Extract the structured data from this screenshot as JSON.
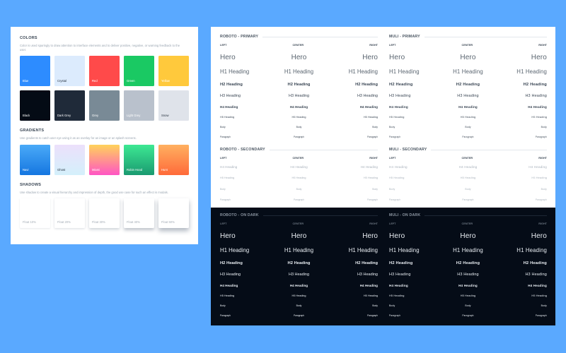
{
  "colors_section": {
    "title": "COLORS",
    "description": "Color is used sparingly to draw attention to interface elements and to deliver positive, negative, or warning feedback to the user.",
    "swatches_row1": [
      {
        "name": "Blue",
        "color": "#2d8cff",
        "text_color": "#ffffff"
      },
      {
        "name": "Crystal",
        "color": "#dcebfd",
        "text_color": "#1f2b38"
      },
      {
        "name": "Red",
        "color": "#ff4a4a",
        "text_color": "#ffffff"
      },
      {
        "name": "Green",
        "color": "#1ac963",
        "text_color": "#ffffff"
      },
      {
        "name": "Yellow",
        "color": "#ffc93c",
        "text_color": "#ffffff"
      }
    ],
    "swatches_row2": [
      {
        "name": "Black",
        "color": "#040b15",
        "text_color": "#ffffff"
      },
      {
        "name": "Dark Grey",
        "color": "#1f2a39",
        "text_color": "#ffffff"
      },
      {
        "name": "Grey",
        "color": "#798a96",
        "text_color": "#ffffff"
      },
      {
        "name": "Light Grey",
        "color": "#b9c1cc",
        "text_color": "#ffffff"
      },
      {
        "name": "Snow",
        "color": "#dfe3ea",
        "text_color": "#1f2b38"
      }
    ]
  },
  "gradients_section": {
    "title": "GRADIENTS",
    "description": "Use gradients to catch user eye using it as an overlay for an image or an splash screens.",
    "swatches": [
      {
        "name": "Navi",
        "from": "#4aaaf8",
        "to": "#1576e0",
        "text_color": "#ffffff"
      },
      {
        "name": "Ghost",
        "from": "#ece0fb",
        "to": "#d4f0fb",
        "text_color": "#1f2b38"
      },
      {
        "name": "Miami",
        "from": "#ffd25a",
        "to": "#ff55c4",
        "text_color": "#ffffff"
      },
      {
        "name": "Robin Hood",
        "from": "#3de893",
        "to": "#1a9a70",
        "text_color": "#ffffff"
      },
      {
        "name": "Hunt",
        "from": "#ffb060",
        "to": "#ff6a3a",
        "text_color": "#ffffff"
      }
    ]
  },
  "shadows_section": {
    "title": "SHADOWS",
    "description": "Use shadow to create a visual hierarchy and impression of depth, the good use case for such an effect is modals.",
    "cards": [
      {
        "name": "Float 10%",
        "shadow": "0 1px 2px rgba(20,40,70,0.10)"
      },
      {
        "name": "Float 20%",
        "shadow": "0 1px 3px rgba(20,40,70,0.16)"
      },
      {
        "name": "Float 30%",
        "shadow": "0 2px 4px rgba(20,40,70,0.22)"
      },
      {
        "name": "Float 40%",
        "shadow": "0 3px 5px rgba(20,40,70,0.28)"
      },
      {
        "name": "Float 50%",
        "shadow": "0 4px 7px rgba(20,40,70,0.34)"
      }
    ]
  },
  "typography": {
    "columns": {
      "left": "LEFT",
      "center": "CENTER",
      "right": "RIGHT"
    },
    "roboto_primary": {
      "title": "ROBOTO - PRIMARY",
      "rows": {
        "hero": "Hero",
        "h1": "H1 Heading",
        "h2": "H2 Heading",
        "h3": "H3 Heading",
        "h4": "H4 Heading",
        "h5": "H5 Heading",
        "body": "Body",
        "paragraph": "Paragraph"
      }
    },
    "muli_primary": {
      "title": "MULI - PRIMARY",
      "rows": {
        "hero": "Hero",
        "h1": "H1 Heading",
        "h2": "H2 Heading",
        "h3": "H3 Heading",
        "h4": "H4 Heading",
        "h5": "H5 Heading",
        "body": "Body",
        "paragraph": "Paragraph"
      }
    },
    "roboto_secondary": {
      "title": "ROBOTO - SECONDARY",
      "rows": {
        "h4": "H4 Heading",
        "h5": "H5 Heading",
        "body": "Body",
        "paragraph": "Paragraph"
      }
    },
    "muli_secondary": {
      "title": "MULI - SECONDARY",
      "rows": {
        "h4": "H4 Heading",
        "h5": "H5 Heading",
        "body": "Body",
        "paragraph": "Paragraph"
      }
    },
    "roboto_dark": {
      "title": "ROBOTO - ON DARK",
      "rows": {
        "hero": "Hero",
        "h1": "H1 Heading",
        "h2": "H2 Heading",
        "h3": "H3 Heading",
        "h4": "H4 Heading",
        "h5": "H5 Heading",
        "body": "Body",
        "paragraph": "Paragraph"
      }
    },
    "muli_dark": {
      "title": "MULI - ON DARK",
      "rows": {
        "hero": "Hero",
        "h1": "H1 Heading",
        "h2": "H2 Heading",
        "h3": "H3 Heading",
        "h4": "H4 Heading",
        "h5": "H5 Heading",
        "body": "Body",
        "paragraph": "Paragraph"
      }
    }
  }
}
